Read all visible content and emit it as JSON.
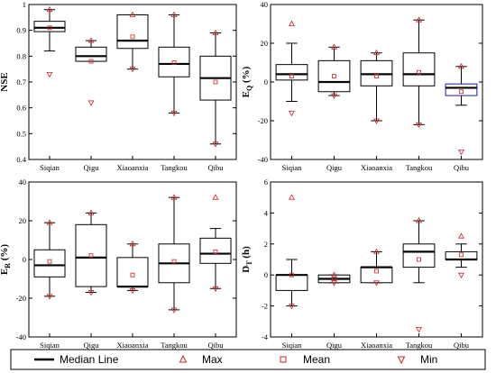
{
  "legend": {
    "median": "Median Line",
    "max": "Max",
    "mean": "Mean",
    "min": "Min"
  },
  "colors": {
    "box": "#000000",
    "box_highlight": "#1a1aa8",
    "marker": "#cc2222"
  },
  "chart_data": [
    {
      "type": "box",
      "categories": [
        "Siqian",
        "Qigu",
        "Xiaoanxia",
        "Tangkou",
        "Qibu"
      ],
      "ylabel": "NSE",
      "ylim": [
        0.4,
        1.0
      ],
      "yticks": [
        0.4,
        0.5,
        0.6,
        0.7,
        0.8,
        0.9,
        1.0
      ],
      "series": [
        {
          "q1": 0.895,
          "median": 0.91,
          "q3": 0.935,
          "whisker_low": 0.82,
          "whisker_high": 0.98,
          "max": 0.98,
          "min": 0.73,
          "mean": 0.91
        },
        {
          "q1": 0.78,
          "median": 0.8,
          "q3": 0.835,
          "whisker_low": 0.78,
          "whisker_high": 0.86,
          "max": 0.86,
          "min": 0.62,
          "mean": 0.78
        },
        {
          "q1": 0.83,
          "median": 0.86,
          "q3": 0.96,
          "whisker_low": 0.75,
          "whisker_high": 0.96,
          "max": 0.96,
          "min": 0.75,
          "mean": 0.875
        },
        {
          "q1": 0.72,
          "median": 0.77,
          "q3": 0.835,
          "whisker_low": 0.58,
          "whisker_high": 0.96,
          "max": 0.96,
          "min": 0.58,
          "mean": 0.775
        },
        {
          "q1": 0.63,
          "median": 0.715,
          "q3": 0.8,
          "whisker_low": 0.46,
          "whisker_high": 0.89,
          "max": 0.89,
          "min": 0.46,
          "mean": 0.7
        }
      ]
    },
    {
      "type": "box",
      "categories": [
        "Siqian",
        "Qigu",
        "Xiaoanxia",
        "Tangkou",
        "Qibu"
      ],
      "ylabel_main": "E",
      "ylabel_sub": "Q",
      "ylabel_unit": " (%)",
      "ylim": [
        -40,
        40
      ],
      "yticks": [
        -40,
        -20,
        0,
        20,
        40
      ],
      "highlight_box_index": 4,
      "series": [
        {
          "q1": 1,
          "median": 4,
          "q3": 9,
          "whisker_low": -10,
          "whisker_high": 20,
          "max": 30,
          "min": -16,
          "mean": 3
        },
        {
          "q1": -5,
          "median": 0,
          "q3": 11,
          "whisker_low": -7,
          "whisker_high": 18,
          "max": 18,
          "min": -7,
          "mean": 3
        },
        {
          "q1": -2,
          "median": 4,
          "q3": 11,
          "whisker_low": -20,
          "whisker_high": 15,
          "max": 15,
          "min": -20,
          "mean": 3
        },
        {
          "q1": -2,
          "median": 4,
          "q3": 15,
          "whisker_low": -22,
          "whisker_high": 32,
          "max": 32,
          "min": -22,
          "mean": 5
        },
        {
          "q1": -7,
          "median": -3,
          "q3": -1,
          "whisker_low": -12,
          "whisker_high": 8,
          "max": 8,
          "min": -36,
          "mean": -5
        }
      ]
    },
    {
      "type": "box",
      "categories": [
        "Siqian",
        "Qigu",
        "Xiaoanxia",
        "Tangkou",
        "Qibu"
      ],
      "ylabel_main": "E",
      "ylabel_sub": "R",
      "ylabel_unit": " (%)",
      "ylim": [
        -40,
        40
      ],
      "yticks": [
        -40,
        -20,
        0,
        20,
        40
      ],
      "series": [
        {
          "q1": -9,
          "median": -3,
          "q3": 5,
          "whisker_low": -19,
          "whisker_high": 19,
          "max": 19,
          "min": -19,
          "mean": -1
        },
        {
          "q1": -14,
          "median": 1,
          "q3": 18,
          "whisker_low": -17,
          "whisker_high": 24,
          "max": 24,
          "min": -17,
          "mean": 2
        },
        {
          "q1": -14,
          "median": -14,
          "q3": 1,
          "whisker_low": -16,
          "whisker_high": 8,
          "max": 8,
          "min": -16,
          "mean": -8
        },
        {
          "q1": -12,
          "median": -2,
          "q3": 8,
          "whisker_low": -26,
          "whisker_high": 32,
          "max": 32,
          "min": -26,
          "mean": -1
        },
        {
          "q1": -2,
          "median": 3,
          "q3": 11,
          "whisker_low": -15,
          "whisker_high": 16,
          "max": 32,
          "min": -15,
          "mean": 4
        }
      ]
    },
    {
      "type": "box",
      "categories": [
        "Siqian",
        "Qigu",
        "Xiaoanxia",
        "Tangkou",
        "Qibu"
      ],
      "ylabel_main": "D",
      "ylabel_sub": "T",
      "ylabel_unit": " (h)",
      "ylim": [
        -4,
        6
      ],
      "yticks": [
        -4,
        -2,
        0,
        2,
        4,
        6
      ],
      "series": [
        {
          "q1": -1,
          "median": 0,
          "q3": 0,
          "whisker_low": -2,
          "whisker_high": 1,
          "max": 5,
          "min": -2,
          "mean": 0
        },
        {
          "q1": -0.5,
          "median": -0.25,
          "q3": 0,
          "whisker_low": -0.5,
          "whisker_high": 0,
          "max": 0,
          "min": -0.5,
          "mean": -0.25
        },
        {
          "q1": -0.5,
          "median": 0.5,
          "q3": 0.5,
          "whisker_low": -0.5,
          "whisker_high": 1.5,
          "max": 1.5,
          "min": -0.5,
          "mean": 0.25
        },
        {
          "q1": 0.5,
          "median": 1.5,
          "q3": 2,
          "whisker_low": -0.5,
          "whisker_high": 3.5,
          "max": 3.5,
          "min": -3.5,
          "mean": 1
        },
        {
          "q1": 1,
          "median": 1,
          "q3": 1.5,
          "whisker_low": 0.5,
          "whisker_high": 2,
          "max": 2.5,
          "min": 0,
          "mean": 1.3
        }
      ]
    }
  ]
}
